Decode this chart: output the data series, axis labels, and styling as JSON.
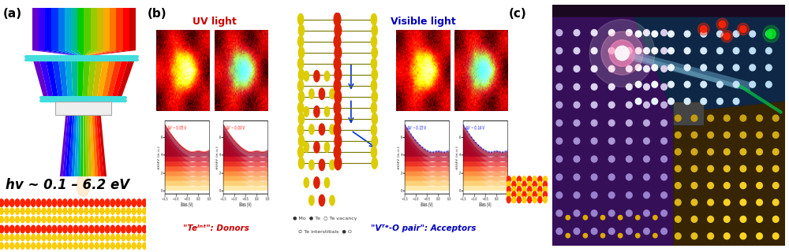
{
  "fig_width": 10.0,
  "fig_height": 3.2,
  "dpi": 100,
  "bg": "#ffffff",
  "panel_a": {
    "label": "(a)",
    "label_fontsize": 11,
    "hv_text": "hv ~ 0.1 – 6.2 eV",
    "hv_fontsize": 12,
    "spectrum_colors": [
      "#6600cc",
      "#3300ff",
      "#0000ff",
      "#0033ff",
      "#0077ee",
      "#00aadd",
      "#00bb99",
      "#00cc00",
      "#55cc00",
      "#99cc00",
      "#ccbb00",
      "#ffaa00",
      "#ff7700",
      "#ff3300",
      "#ff0000",
      "#cc0000"
    ]
  },
  "panel_b": {
    "label": "(b)",
    "label_fontsize": 11,
    "uv_label": "UV light",
    "uv_color": "#cc0000",
    "visible_label": "Visible light",
    "visible_color": "#0000bb",
    "donor_text": "\"Teᴵⁿᵗ\": Donors",
    "donor_color": "#cc0000",
    "acceptor_text": "\"Vᵀᵉ-O pair\": Acceptors",
    "acceptor_color": "#0000bb"
  },
  "panel_c": {
    "label": "(c)",
    "label_fontsize": 11
  }
}
